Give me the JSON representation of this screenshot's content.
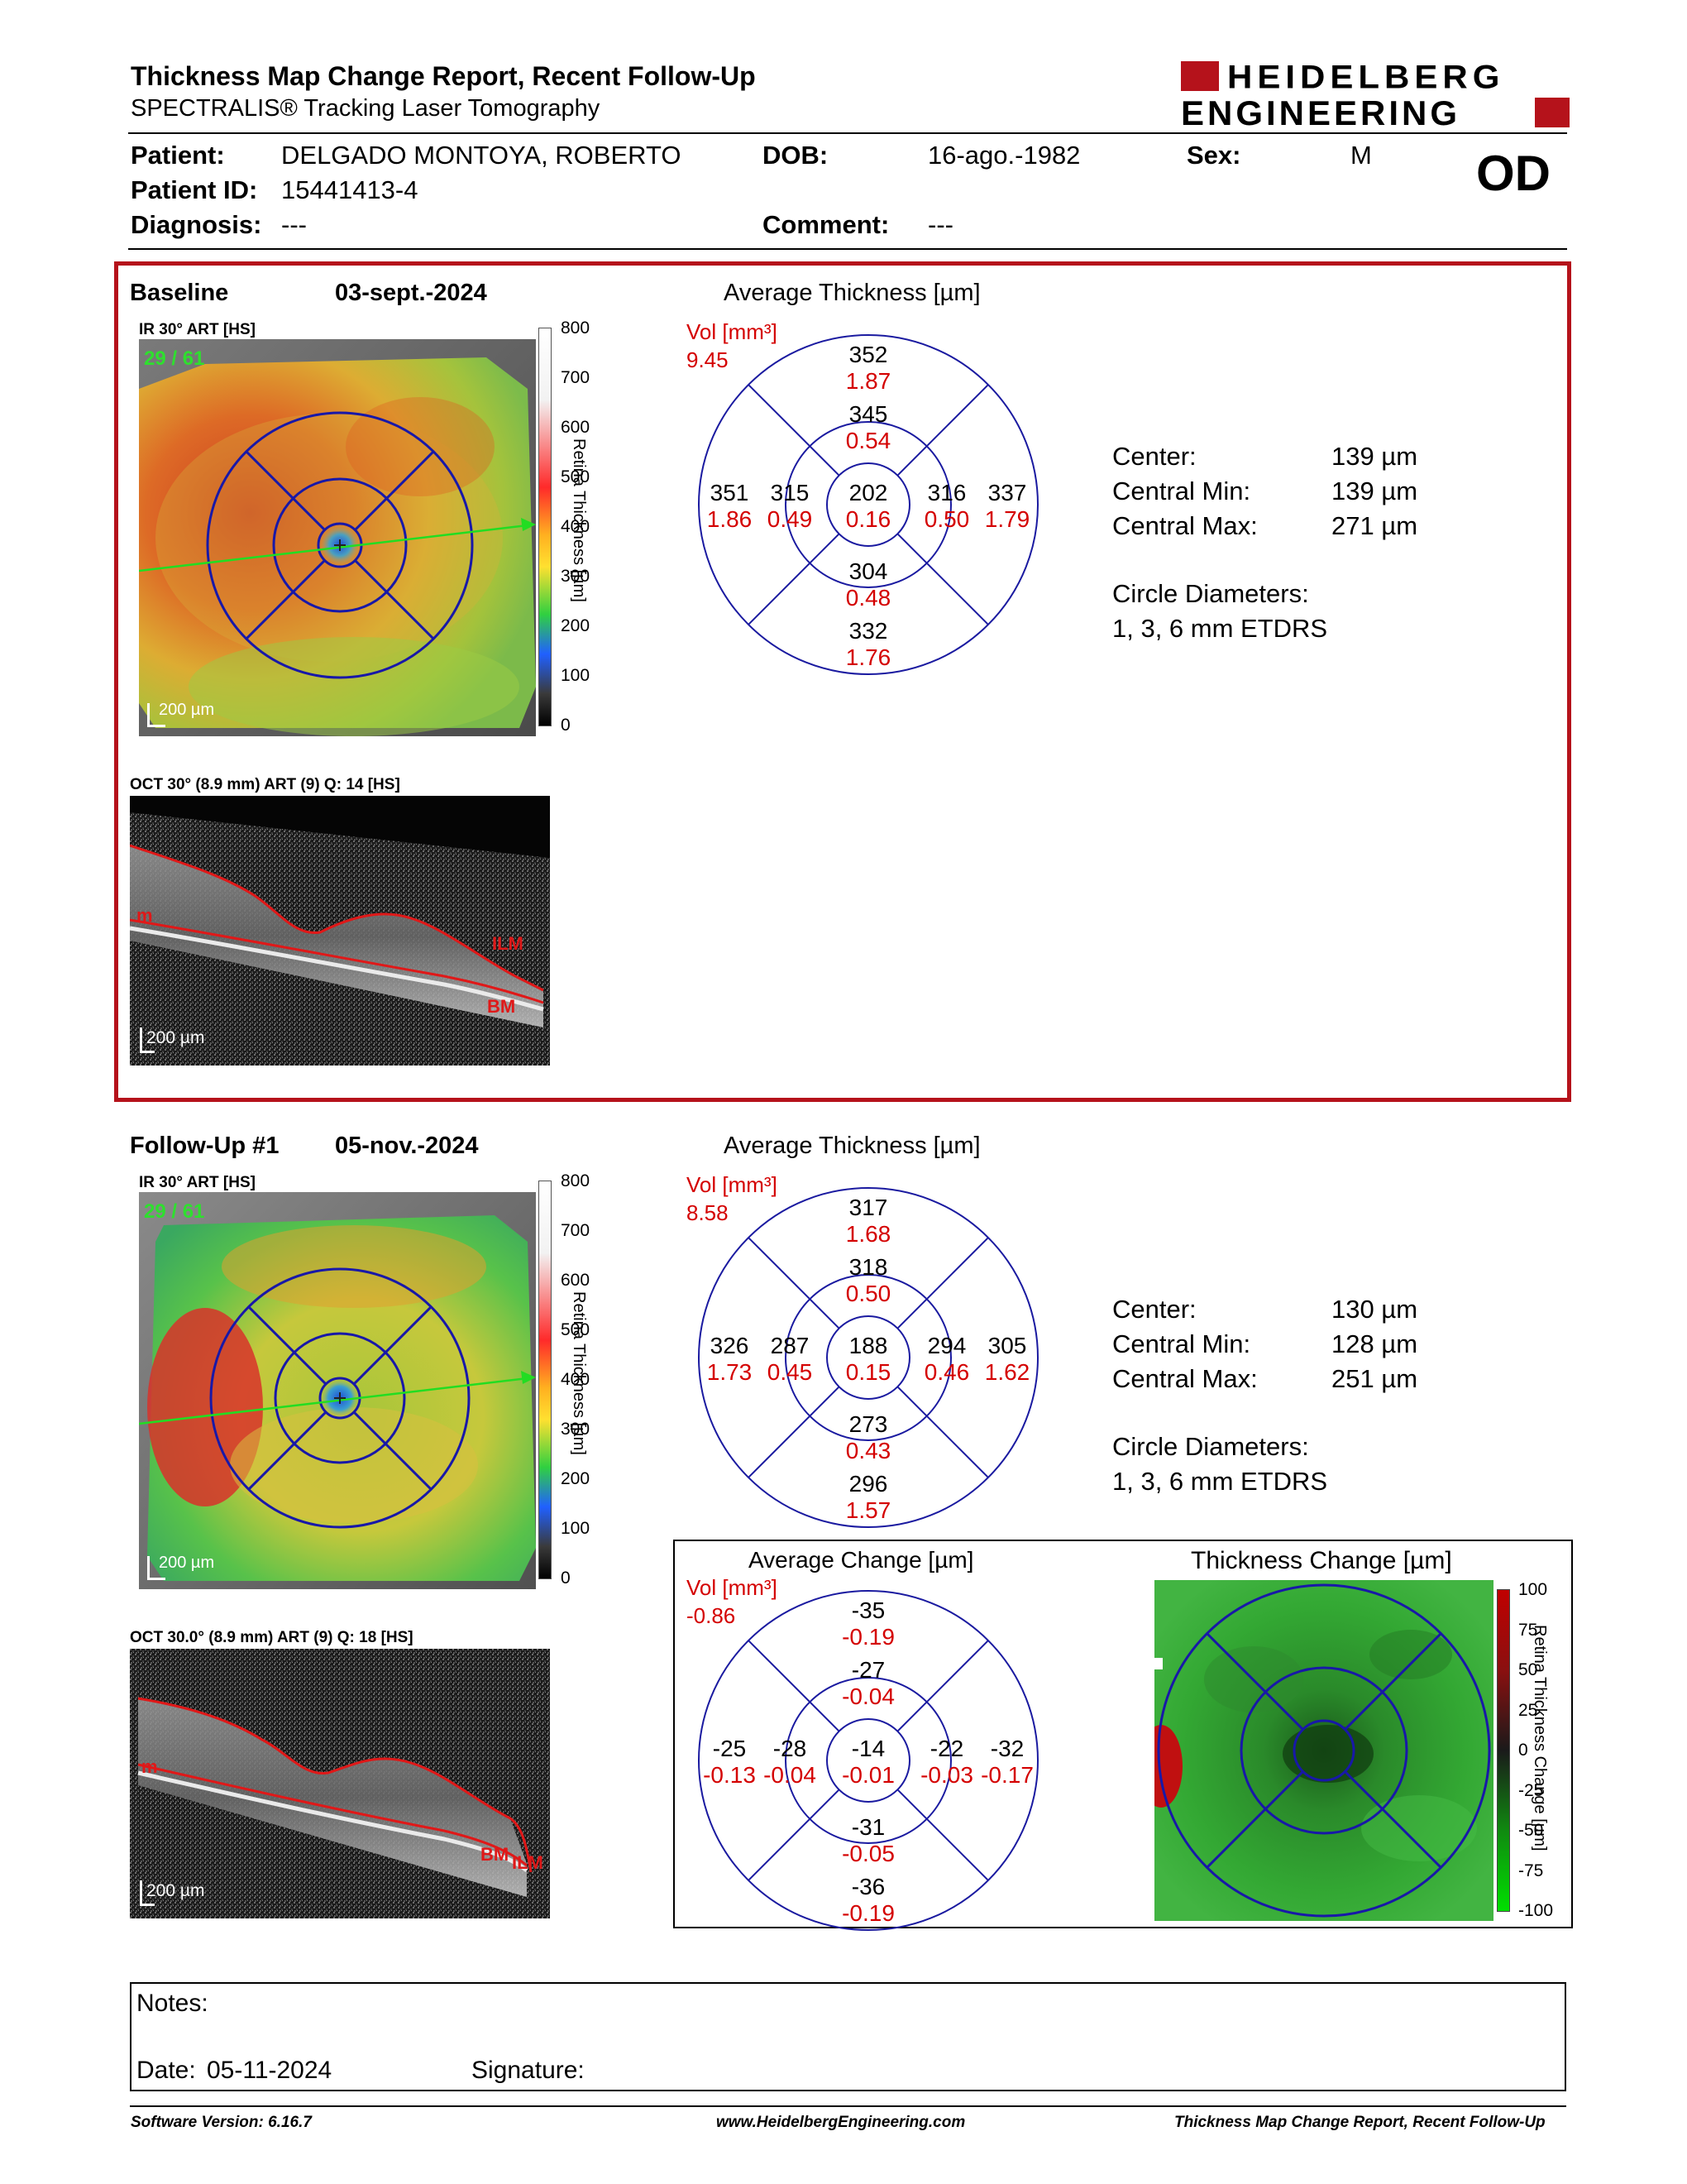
{
  "header": {
    "title": "Thickness Map Change Report, Recent Follow-Up",
    "subtitle": "SPECTRALIS® Tracking Laser Tomography",
    "logo_line1": "HEIDELBERG",
    "logo_line2": "ENGINEERING"
  },
  "patient": {
    "patient_label": "Patient:",
    "patient_value": "DELGADO MONTOYA, ROBERTO",
    "dob_label": "DOB:",
    "dob_value": "16-ago.-1982",
    "sex_label": "Sex:",
    "sex_value": "M",
    "id_label": "Patient ID:",
    "id_value": "15441413-4",
    "eye": "OD",
    "diagnosis_label": "Diagnosis:",
    "diagnosis_value": "---",
    "comment_label": "Comment:",
    "comment_value": "---"
  },
  "baseline": {
    "label": "Baseline",
    "date": "03-sept.-2024",
    "ir_label": "IR 30° ART [HS]",
    "ir_frames": "29 / 61",
    "ir_scale": "200 µm",
    "oct_label": "OCT 30° (8.9 mm) ART (9) Q: 14 [HS]",
    "oct_scale": "200 µm",
    "oct_tags": [
      "m",
      "ILM",
      "BM"
    ],
    "colorbar_ticks": [
      "800",
      "700",
      "600",
      "500",
      "400",
      "300",
      "200",
      "100",
      "0"
    ],
    "colorbar_title": "Retina Thickness [µm]",
    "etdrs_title": "Average Thickness [µm]",
    "vol_label": "Vol [mm³]",
    "vol_total": "9.45",
    "sectors": {
      "outer_top": [
        "352",
        "1.87"
      ],
      "inner_top": [
        "345",
        "0.54"
      ],
      "outer_left": [
        "351",
        "1.86"
      ],
      "inner_left": [
        "315",
        "0.49"
      ],
      "center": [
        "202",
        "0.16"
      ],
      "inner_right": [
        "316",
        "0.50"
      ],
      "outer_right": [
        "337",
        "1.79"
      ],
      "inner_bottom": [
        "304",
        "0.48"
      ],
      "outer_bottom": [
        "332",
        "1.76"
      ]
    },
    "stats": {
      "center_label": "Center:",
      "center_value": "139 µm",
      "min_label": "Central Min:",
      "min_value": "139 µm",
      "max_label": "Central Max:",
      "max_value": "271 µm",
      "diam_label": "Circle Diameters:",
      "diam_value": "1, 3, 6 mm ETDRS"
    }
  },
  "followup": {
    "label": "Follow-Up #1",
    "date": "05-nov.-2024",
    "ir_label": "IR 30° ART [HS]",
    "ir_frames": "29 / 61",
    "ir_scale": "200 µm",
    "oct_label": "OCT 30.0° (8.9 mm) ART (9) Q: 18 [HS]",
    "oct_scale": "200 µm",
    "oct_tags": [
      "m",
      "BM",
      "ILM"
    ],
    "colorbar_ticks": [
      "800",
      "700",
      "600",
      "500",
      "400",
      "300",
      "200",
      "100",
      "0"
    ],
    "colorbar_title": "Retina Thickness [µm]",
    "etdrs_title": "Average Thickness [µm]",
    "vol_label": "Vol [mm³]",
    "vol_total": "8.58",
    "sectors": {
      "outer_top": [
        "317",
        "1.68"
      ],
      "inner_top": [
        "318",
        "0.50"
      ],
      "outer_left": [
        "326",
        "1.73"
      ],
      "inner_left": [
        "287",
        "0.45"
      ],
      "center": [
        "188",
        "0.15"
      ],
      "inner_right": [
        "294",
        "0.46"
      ],
      "outer_right": [
        "305",
        "1.62"
      ],
      "inner_bottom": [
        "273",
        "0.43"
      ],
      "outer_bottom": [
        "296",
        "1.57"
      ]
    },
    "stats": {
      "center_label": "Center:",
      "center_value": "130 µm",
      "min_label": "Central Min:",
      "min_value": "128 µm",
      "max_label": "Central Max:",
      "max_value": "251 µm",
      "diam_label": "Circle Diameters:",
      "diam_value": "1, 3, 6 mm ETDRS"
    }
  },
  "change": {
    "etdrs_title": "Average Change [µm]",
    "vol_label": "Vol [mm³]",
    "vol_total": "-0.86",
    "sectors": {
      "outer_top": [
        "-35",
        "-0.19"
      ],
      "inner_top": [
        "-27",
        "-0.04"
      ],
      "outer_left": [
        "-25",
        "-0.13"
      ],
      "inner_left": [
        "-28",
        "-0.04"
      ],
      "center": [
        "-14",
        "-0.01"
      ],
      "inner_right": [
        "-22",
        "-0.03"
      ],
      "outer_right": [
        "-32",
        "-0.17"
      ],
      "inner_bottom": [
        "-31",
        "-0.05"
      ],
      "outer_bottom": [
        "-36",
        "-0.19"
      ]
    },
    "map_title": "Thickness Change [µm]",
    "colorbar_ticks": [
      "100",
      "75",
      "50",
      "25",
      "0",
      "-25",
      "-50",
      "-75",
      "-100"
    ],
    "colorbar_title": "Retina Thickness Change [µm]"
  },
  "notes": {
    "notes_label": "Notes:",
    "date_label": "Date:",
    "date_value": "05-11-2024",
    "signature_label": "Signature:"
  },
  "footer": {
    "software": "Software Version: 6.16.7",
    "website": "www.HeidelbergEngineering.com",
    "report": "Thickness Map Change Report, Recent Follow-Up"
  },
  "colors": {
    "accent_red": "#b5121b",
    "etdrs_blue": "#1a1aa0",
    "value_red": "#d40000"
  }
}
